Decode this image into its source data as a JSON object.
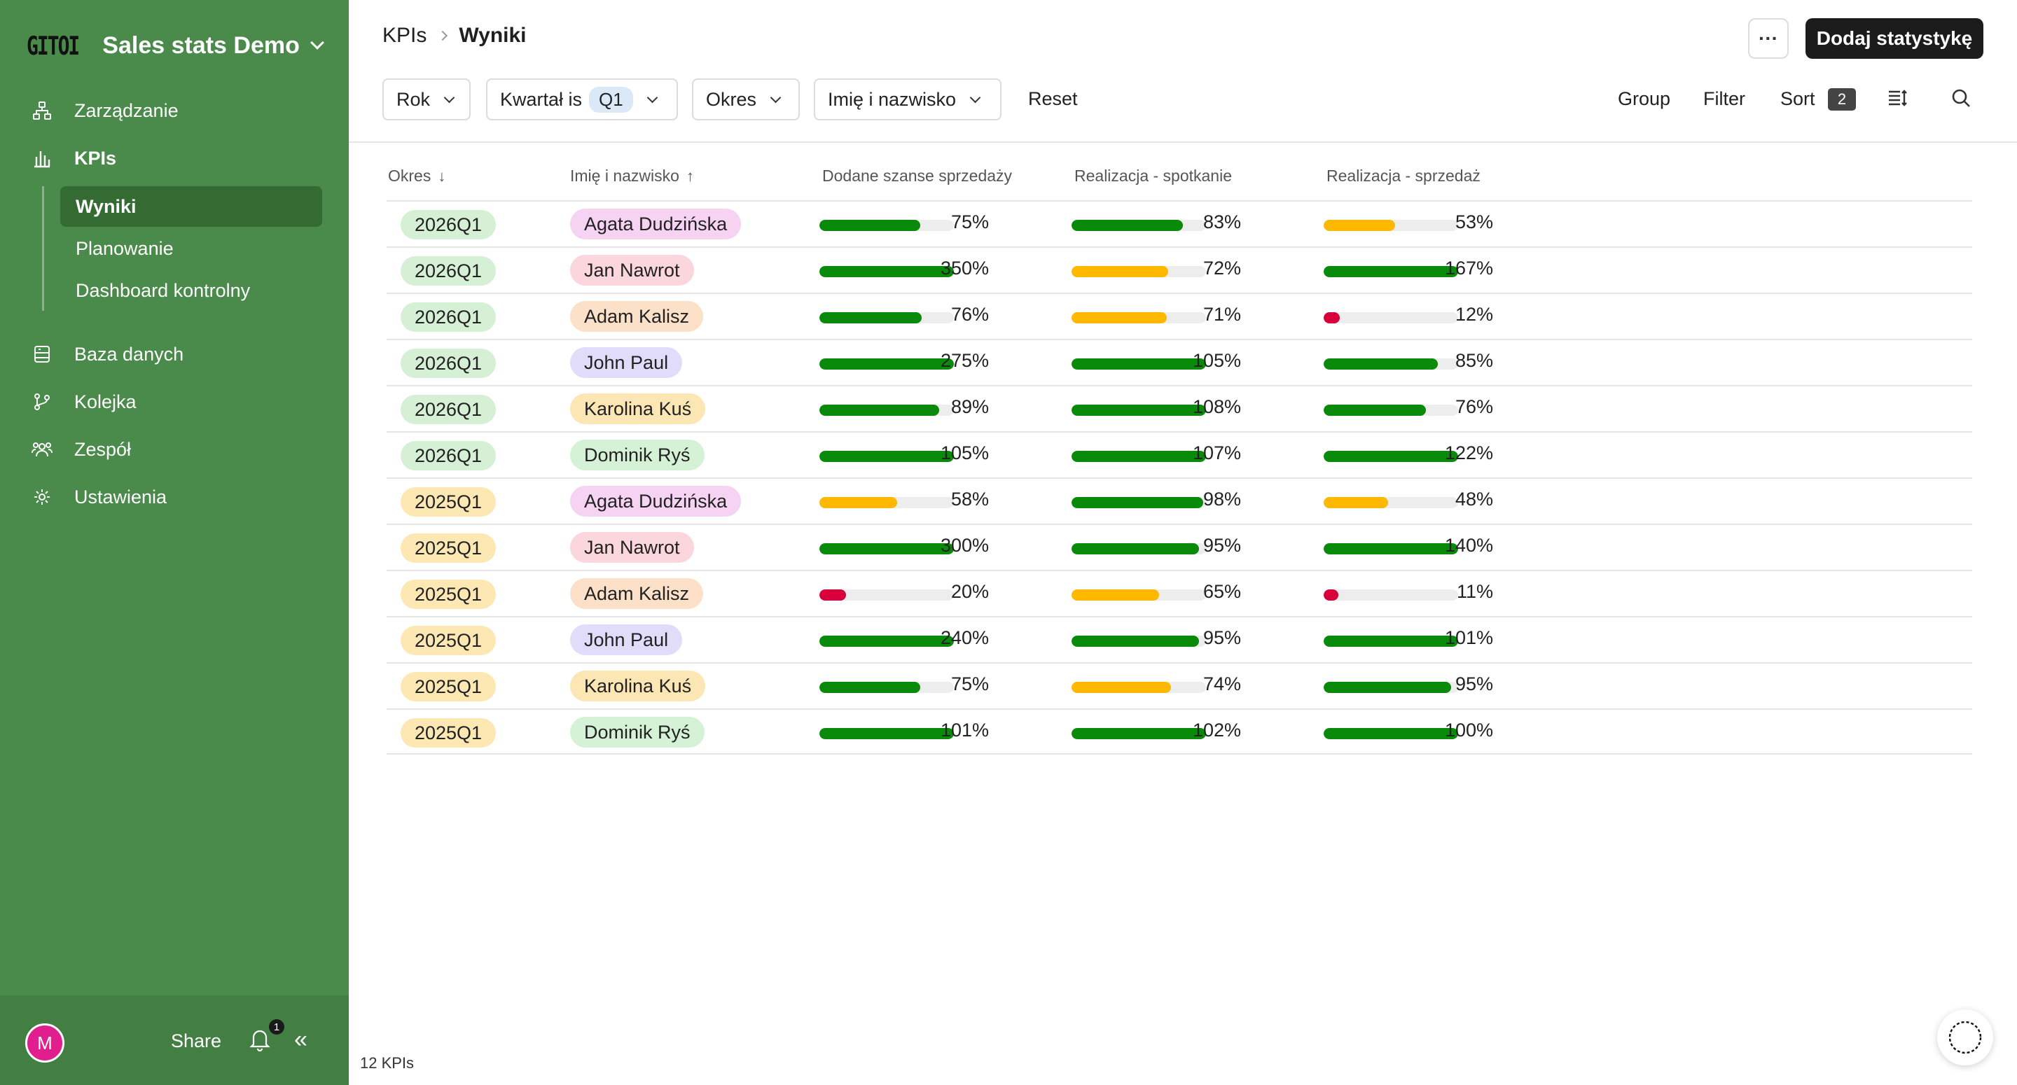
{
  "sidebar": {
    "logo": "GITOI",
    "app_name": "Sales stats Demo",
    "items": [
      {
        "label": "Zarządzanie",
        "icon": "org-chart-icon"
      },
      {
        "label": "KPIs",
        "icon": "bar-chart-icon"
      },
      {
        "label": "Baza danych",
        "icon": "database-icon"
      },
      {
        "label": "Kolejka",
        "icon": "branch-icon"
      },
      {
        "label": "Zespół",
        "icon": "team-icon"
      },
      {
        "label": "Ustawienia",
        "icon": "settings-icon"
      }
    ],
    "sub_items": [
      {
        "label": "Wyniki",
        "active": true
      },
      {
        "label": "Planowanie",
        "active": false
      },
      {
        "label": "Dashboard kontrolny",
        "active": false
      }
    ],
    "footer": {
      "avatar_letter": "M",
      "share_label": "Share",
      "notification_count": "1"
    }
  },
  "header": {
    "breadcrumb_root": "KPIs",
    "breadcrumb_current": "Wyniki",
    "more_label": "···",
    "primary_button": "Dodaj statystykę"
  },
  "filters": {
    "rok": "Rok",
    "kwartal_label": "Kwartał is",
    "kwartal_value": "Q1",
    "okres": "Okres",
    "imie": "Imię i nazwisko",
    "reset": "Reset"
  },
  "toolbar": {
    "group": "Group",
    "filter": "Filter",
    "sort": "Sort",
    "sort_count": "2"
  },
  "table": {
    "columns": {
      "okres": "Okres",
      "imie": "Imię i nazwisko",
      "dodane": "Dodane szanse sprzedaży",
      "spotkanie": "Realizacja - spotkanie",
      "sprzedaz": "Realizacja - sprzedaż"
    },
    "sort_arrows": {
      "okres": "↓",
      "imie": "↑"
    },
    "rows": [
      {
        "okres": "2026Q1",
        "name": "Agata Dudzińska",
        "dodane": "75%",
        "spotkanie": "83%",
        "sprzedaz": "53%"
      },
      {
        "okres": "2026Q1",
        "name": "Jan Nawrot",
        "dodane": "350%",
        "spotkanie": "72%",
        "sprzedaz": "167%"
      },
      {
        "okres": "2026Q1",
        "name": "Adam Kalisz",
        "dodane": "76%",
        "spotkanie": "71%",
        "sprzedaz": "12%"
      },
      {
        "okres": "2026Q1",
        "name": "John Paul",
        "dodane": "275%",
        "spotkanie": "105%",
        "sprzedaz": "85%"
      },
      {
        "okres": "2026Q1",
        "name": "Karolina Kuś",
        "dodane": "89%",
        "spotkanie": "108%",
        "sprzedaz": "76%"
      },
      {
        "okres": "2026Q1",
        "name": "Dominik Ryś",
        "dodane": "105%",
        "spotkanie": "107%",
        "sprzedaz": "122%"
      },
      {
        "okres": "2025Q1",
        "name": "Agata Dudzińska",
        "dodane": "58%",
        "spotkanie": "98%",
        "sprzedaz": "48%"
      },
      {
        "okres": "2025Q1",
        "name": "Jan Nawrot",
        "dodane": "300%",
        "spotkanie": "95%",
        "sprzedaz": "140%"
      },
      {
        "okres": "2025Q1",
        "name": "Adam Kalisz",
        "dodane": "20%",
        "spotkanie": "65%",
        "sprzedaz": "11%"
      },
      {
        "okres": "2025Q1",
        "name": "John Paul",
        "dodane": "240%",
        "spotkanie": "95%",
        "sprzedaz": "101%"
      },
      {
        "okres": "2025Q1",
        "name": "Karolina Kuś",
        "dodane": "75%",
        "spotkanie": "74%",
        "sprzedaz": "95%"
      },
      {
        "okres": "2025Q1",
        "name": "Dominik Ryś",
        "dodane": "101%",
        "spotkanie": "102%",
        "sprzedaz": "100%"
      }
    ]
  },
  "footer_count": "12 KPIs",
  "colors": {
    "sidebar_bg": "#4a8a4a",
    "bar_good": "#0a8a0a",
    "bar_warn": "#ffb800",
    "bar_bad": "#d8003c",
    "period_2026": "#d5f0d5",
    "period_2025": "#fde8b4",
    "person_agata": "#f6d2f3",
    "person_jan": "#fbd6dc",
    "person_adam": "#fde0c8",
    "person_john": "#e0dcfa",
    "person_karolina": "#fbe6b4",
    "person_dominik": "#d6f2d6"
  }
}
